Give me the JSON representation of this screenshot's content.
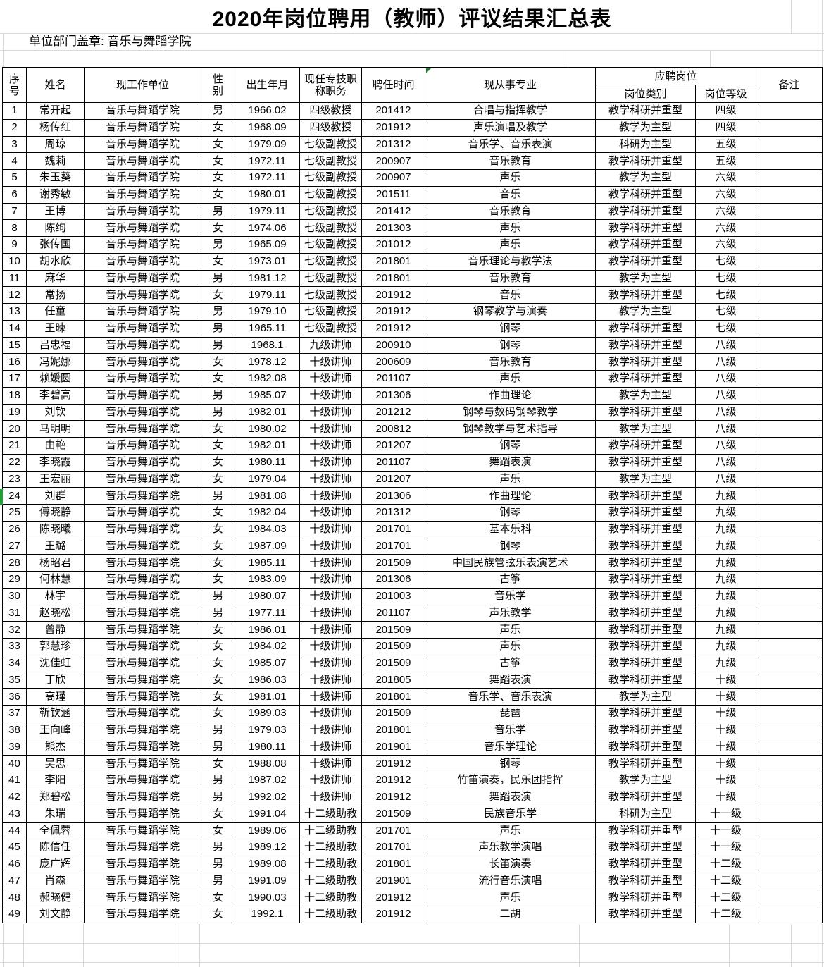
{
  "title": "2020年岗位聘用（教师）评议结果汇总表",
  "stamp_line": "单位部门盖章: 音乐与舞蹈学院",
  "table": {
    "headers": {
      "seq": "序\n号",
      "name": "姓名",
      "work_unit": "现工作单位",
      "gender": "性\n别",
      "birth": "出生年月",
      "title_position": "现任专技职\n称职务",
      "hire_time": "聘任时间",
      "profession": "现从事专业",
      "applied_post": "应聘岗位",
      "post_category": "岗位类别",
      "post_level": "岗位等级",
      "remark": "备注"
    },
    "rows": [
      [
        "1",
        "常开起",
        "音乐与舞蹈学院",
        "男",
        "1966.02",
        "四级教授",
        "201412",
        "合唱与指挥教学",
        "教学科研并重型",
        "四级",
        ""
      ],
      [
        "2",
        "杨传红",
        "音乐与舞蹈学院",
        "女",
        "1968.09",
        "四级教授",
        "201912",
        "声乐演唱及教学",
        "教学为主型",
        "四级",
        ""
      ],
      [
        "3",
        "周琼",
        "音乐与舞蹈学院",
        "女",
        "1979.09",
        "七级副教授",
        "201312",
        "音乐学、音乐表演",
        "科研为主型",
        "五级",
        ""
      ],
      [
        "4",
        "魏莉",
        "音乐与舞蹈学院",
        "女",
        "1972.11",
        "七级副教授",
        "200907",
        "音乐教育",
        "教学科研并重型",
        "五级",
        ""
      ],
      [
        "5",
        "朱玉葵",
        "音乐与舞蹈学院",
        "女",
        "1972.11",
        "七级副教授",
        "200907",
        "声乐",
        "教学为主型",
        "六级",
        ""
      ],
      [
        "6",
        "谢秀敏",
        "音乐与舞蹈学院",
        "女",
        "1980.01",
        "七级副教授",
        "201511",
        "音乐",
        "教学科研并重型",
        "六级",
        ""
      ],
      [
        "7",
        "王博",
        "音乐与舞蹈学院",
        "男",
        "1979.11",
        "七级副教授",
        "201412",
        "音乐教育",
        "教学科研并重型",
        "六级",
        ""
      ],
      [
        "8",
        "陈绚",
        "音乐与舞蹈学院",
        "女",
        "1974.06",
        "七级副教授",
        "201303",
        "声乐",
        "教学科研并重型",
        "六级",
        ""
      ],
      [
        "9",
        "张传国",
        "音乐与舞蹈学院",
        "男",
        "1965.09",
        "七级副教授",
        "201012",
        "声乐",
        "教学科研并重型",
        "六级",
        ""
      ],
      [
        "10",
        "胡水欣",
        "音乐与舞蹈学院",
        "女",
        "1973.01",
        "七级副教授",
        "201801",
        "音乐理论与教学法",
        "教学科研并重型",
        "七级",
        ""
      ],
      [
        "11",
        "麻华",
        "音乐与舞蹈学院",
        "男",
        "1981.12",
        "七级副教授",
        "201801",
        "音乐教育",
        "教学为主型",
        "七级",
        ""
      ],
      [
        "12",
        "常扬",
        "音乐与舞蹈学院",
        "女",
        "1979.11",
        "七级副教授",
        "201912",
        "音乐",
        "教学科研并重型",
        "七级",
        ""
      ],
      [
        "13",
        "任童",
        "音乐与舞蹈学院",
        "男",
        "1979.10",
        "七级副教授",
        "201912",
        "钢琴教学与演奏",
        "教学为主型",
        "七级",
        ""
      ],
      [
        "14",
        "王暕",
        "音乐与舞蹈学院",
        "男",
        "1965.11",
        "七级副教授",
        "201912",
        "钢琴",
        "教学科研并重型",
        "七级",
        ""
      ],
      [
        "15",
        "吕忠福",
        "音乐与舞蹈学院",
        "男",
        "1968.1",
        "九级讲师",
        "200910",
        "钢琴",
        "教学科研并重型",
        "八级",
        ""
      ],
      [
        "16",
        "冯妮娜",
        "音乐与舞蹈学院",
        "女",
        "1978.12",
        "十级讲师",
        "200609",
        "音乐教育",
        "教学科研并重型",
        "八级",
        ""
      ],
      [
        "17",
        "赖媛圆",
        "音乐与舞蹈学院",
        "女",
        "1982.08",
        "十级讲师",
        "201107",
        "声乐",
        "教学科研并重型",
        "八级",
        ""
      ],
      [
        "18",
        "李碧高",
        "音乐与舞蹈学院",
        "男",
        "1985.07",
        "十级讲师",
        "201306",
        "作曲理论",
        "教学为主型",
        "八级",
        ""
      ],
      [
        "19",
        "刘钦",
        "音乐与舞蹈学院",
        "男",
        "1982.01",
        "十级讲师",
        "201212",
        "钢琴与数码钢琴教学",
        "教学科研并重型",
        "八级",
        ""
      ],
      [
        "20",
        "马明明",
        "音乐与舞蹈学院",
        "女",
        "1980.02",
        "十级讲师",
        "200812",
        "钢琴教学与艺术指导",
        "教学为主型",
        "八级",
        ""
      ],
      [
        "21",
        "由艳",
        "音乐与舞蹈学院",
        "女",
        "1982.01",
        "十级讲师",
        "201207",
        "钢琴",
        "教学科研并重型",
        "八级",
        ""
      ],
      [
        "22",
        "李晓霞",
        "音乐与舞蹈学院",
        "女",
        "1980.11",
        "十级讲师",
        "201107",
        "舞蹈表演",
        "教学科研并重型",
        "八级",
        ""
      ],
      [
        "23",
        "王宏丽",
        "音乐与舞蹈学院",
        "女",
        "1979.04",
        "十级讲师",
        "201207",
        "声乐",
        "教学为主型",
        "八级",
        ""
      ],
      [
        "24",
        "刘群",
        "音乐与舞蹈学院",
        "男",
        "1981.08",
        "十级讲师",
        "201306",
        "作曲理论",
        "教学科研并重型",
        "九级",
        ""
      ],
      [
        "25",
        "傅晓静",
        "音乐与舞蹈学院",
        "女",
        "1982.04",
        "十级讲师",
        "201312",
        "钢琴",
        "教学科研并重型",
        "九级",
        ""
      ],
      [
        "26",
        "陈晓曦",
        "音乐与舞蹈学院",
        "女",
        "1984.03",
        "十级讲师",
        "201701",
        "基本乐科",
        "教学科研并重型",
        "九级",
        ""
      ],
      [
        "27",
        "王璐",
        "音乐与舞蹈学院",
        "女",
        "1987.09",
        "十级讲师",
        "201701",
        "钢琴",
        "教学科研并重型",
        "九级",
        ""
      ],
      [
        "28",
        "杨昭君",
        "音乐与舞蹈学院",
        "女",
        "1985.11",
        "十级讲师",
        "201509",
        "中国民族管弦乐表演艺术",
        "教学科研并重型",
        "九级",
        ""
      ],
      [
        "29",
        "何林慧",
        "音乐与舞蹈学院",
        "女",
        "1983.09",
        "十级讲师",
        "201306",
        "古筝",
        "教学科研并重型",
        "九级",
        ""
      ],
      [
        "30",
        "林宇",
        "音乐与舞蹈学院",
        "男",
        "1980.07",
        "十级讲师",
        "201003",
        "音乐学",
        "教学科研并重型",
        "九级",
        ""
      ],
      [
        "31",
        "赵晓松",
        "音乐与舞蹈学院",
        "男",
        "1977.11",
        "十级讲师",
        "201107",
        "声乐教学",
        "教学科研并重型",
        "九级",
        ""
      ],
      [
        "32",
        "曾静",
        "音乐与舞蹈学院",
        "女",
        "1986.01",
        "十级讲师",
        "201509",
        "声乐",
        "教学科研并重型",
        "九级",
        ""
      ],
      [
        "33",
        "郭慧珍",
        "音乐与舞蹈学院",
        "女",
        "1984.02",
        "十级讲师",
        "201509",
        "声乐",
        "教学科研并重型",
        "九级",
        ""
      ],
      [
        "34",
        "沈佳虹",
        "音乐与舞蹈学院",
        "女",
        "1985.07",
        "十级讲师",
        "201509",
        "古筝",
        "教学科研并重型",
        "九级",
        ""
      ],
      [
        "35",
        "丁欣",
        "音乐与舞蹈学院",
        "女",
        "1986.03",
        "十级讲师",
        "201805",
        "舞蹈表演",
        "教学科研并重型",
        "十级",
        ""
      ],
      [
        "36",
        "高瑾",
        "音乐与舞蹈学院",
        "女",
        "1981.01",
        "十级讲师",
        "201801",
        "音乐学、音乐表演",
        "教学为主型",
        "十级",
        ""
      ],
      [
        "37",
        "靳钦涵",
        "音乐与舞蹈学院",
        "女",
        "1989.03",
        "十级讲师",
        "201509",
        "琵琶",
        "教学科研并重型",
        "十级",
        ""
      ],
      [
        "38",
        "王向峰",
        "音乐与舞蹈学院",
        "男",
        "1979.03",
        "十级讲师",
        "201801",
        "音乐学",
        "教学科研并重型",
        "十级",
        ""
      ],
      [
        "39",
        "熊杰",
        "音乐与舞蹈学院",
        "男",
        "1980.11",
        "十级讲师",
        "201901",
        "音乐学理论",
        "教学科研并重型",
        "十级",
        ""
      ],
      [
        "40",
        "吴思",
        "音乐与舞蹈学院",
        "女",
        "1988.08",
        "十级讲师",
        "201912",
        "钢琴",
        "教学科研并重型",
        "十级",
        ""
      ],
      [
        "41",
        "李阳",
        "音乐与舞蹈学院",
        "男",
        "1987.02",
        "十级讲师",
        "201912",
        "竹笛演奏，民乐团指挥",
        "教学为主型",
        "十级",
        ""
      ],
      [
        "42",
        "郑碧松",
        "音乐与舞蹈学院",
        "男",
        "1992.02",
        "十级讲师",
        "201912",
        "舞蹈表演",
        "教学科研并重型",
        "十级",
        ""
      ],
      [
        "43",
        "朱瑞",
        "音乐与舞蹈学院",
        "女",
        "1991.04",
        "十二级助教",
        "201509",
        "民族音乐学",
        "科研为主型",
        "十一级",
        ""
      ],
      [
        "44",
        "全佩蓉",
        "音乐与舞蹈学院",
        "女",
        "1989.06",
        "十二级助教",
        "201701",
        "声乐",
        "教学科研并重型",
        "十一级",
        ""
      ],
      [
        "45",
        "陈信任",
        "音乐与舞蹈学院",
        "男",
        "1989.12",
        "十二级助教",
        "201701",
        "声乐教学演唱",
        "教学科研并重型",
        "十一级",
        ""
      ],
      [
        "46",
        "庞广辉",
        "音乐与舞蹈学院",
        "男",
        "1989.08",
        "十二级助教",
        "201801",
        "长笛演奏",
        "教学科研并重型",
        "十二级",
        ""
      ],
      [
        "47",
        "肖森",
        "音乐与舞蹈学院",
        "男",
        "1991.09",
        "十二级助教",
        "201901",
        "流行音乐演唱",
        "教学科研并重型",
        "十二级",
        ""
      ],
      [
        "48",
        "郝晓健",
        "音乐与舞蹈学院",
        "女",
        "1990.03",
        "十二级助教",
        "201912",
        "声乐",
        "教学科研并重型",
        "十二级",
        ""
      ],
      [
        "49",
        "刘文静",
        "音乐与舞蹈学院",
        "女",
        "1992.1",
        "十二级助教",
        "201912",
        "二胡",
        "教学科研并重型",
        "十二级",
        ""
      ]
    ],
    "page_break_after_row": 30
  },
  "indicators": {
    "error_triangle_color": "#1e7e34",
    "page_break_tick_color": "#21a038",
    "gridline_color": "#d9d9d9"
  }
}
